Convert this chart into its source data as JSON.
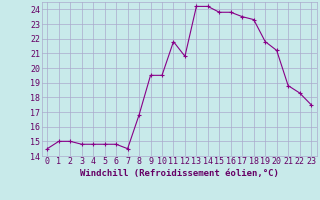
{
  "x": [
    0,
    1,
    2,
    3,
    4,
    5,
    6,
    7,
    8,
    9,
    10,
    11,
    12,
    13,
    14,
    15,
    16,
    17,
    18,
    19,
    20,
    21,
    22,
    23
  ],
  "y": [
    14.5,
    15.0,
    15.0,
    14.8,
    14.8,
    14.8,
    14.8,
    14.5,
    16.8,
    19.5,
    19.5,
    21.8,
    20.8,
    24.2,
    24.2,
    23.8,
    23.8,
    23.5,
    23.3,
    21.8,
    21.2,
    18.8,
    18.3,
    17.5
  ],
  "xlabel": "Windchill (Refroidissement éolien,°C)",
  "ylim": [
    14,
    24.5
  ],
  "xlim": [
    -0.5,
    23.5
  ],
  "yticks": [
    14,
    15,
    16,
    17,
    18,
    19,
    20,
    21,
    22,
    23,
    24
  ],
  "xticks": [
    0,
    1,
    2,
    3,
    4,
    5,
    6,
    7,
    8,
    9,
    10,
    11,
    12,
    13,
    14,
    15,
    16,
    17,
    18,
    19,
    20,
    21,
    22,
    23
  ],
  "line_color": "#880088",
  "marker": "+",
  "markersize": 3,
  "linewidth": 0.8,
  "bg_color": "#c8eaea",
  "grid_color": "#aaaacc",
  "font_color": "#660066",
  "tick_fontsize": 6,
  "xlabel_fontsize": 6.5
}
